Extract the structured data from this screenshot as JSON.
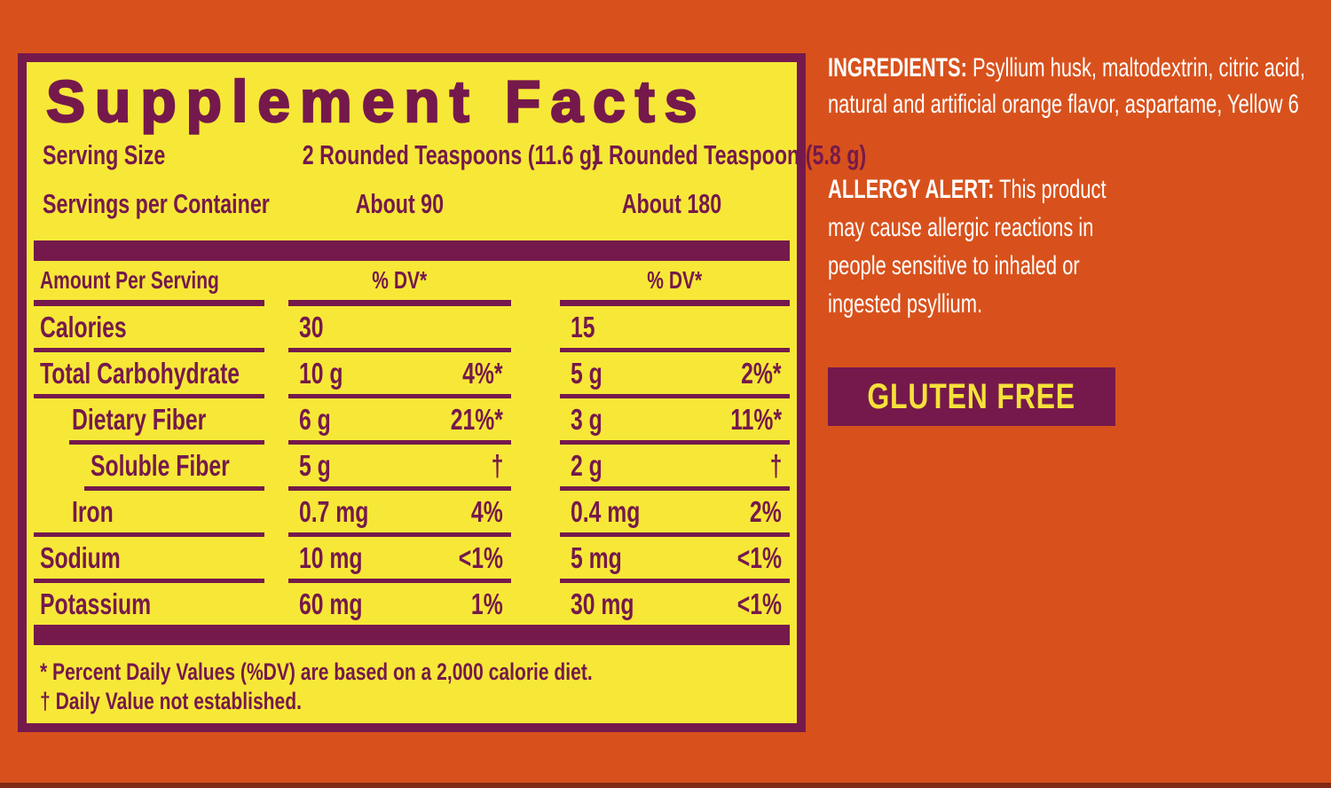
{
  "colors": {
    "orange_bg": "#d8511c",
    "label_purple": "#75194c",
    "panel_yellow": "#f7e837",
    "text_white": "#ffffff",
    "badge_yellow": "#f6e139",
    "bottom_edge": "#812a15"
  },
  "panel": {
    "title": "Supplement Facts",
    "serving_size": {
      "label": "Serving Size",
      "col1": "2 Rounded Teaspoons (11.6 g)",
      "col2": "1 Rounded Teaspoon (5.8 g)"
    },
    "servings_per_container": {
      "label": "Servings per Container",
      "col1": "About 90",
      "col2": "About 180"
    },
    "table": {
      "header": {
        "label": "Amount Per Serving",
        "dv1": "% DV*",
        "dv2": "% DV*"
      },
      "rows": [
        {
          "label": "Calories",
          "amt1": "30",
          "dv1": "",
          "amt2": "15",
          "dv2": ""
        },
        {
          "label": "Total Carbohydrate",
          "amt1": "10 g",
          "dv1": "4%*",
          "amt2": "5 g",
          "dv2": "2%*"
        },
        {
          "label": "Dietary Fiber",
          "amt1": "6 g",
          "dv1": "21%*",
          "amt2": "3 g",
          "dv2": "11%*"
        },
        {
          "label": "Soluble Fiber",
          "amt1": "5 g",
          "dv1": "†",
          "amt2": "2 g",
          "dv2": "†"
        },
        {
          "label": "Iron",
          "amt1": "0.7 mg",
          "dv1": "4%",
          "amt2": "0.4 mg",
          "dv2": "2%"
        },
        {
          "label": "Sodium",
          "amt1": "10 mg",
          "dv1": "<1%",
          "amt2": "5 mg",
          "dv2": "<1%"
        },
        {
          "label": "Potassium",
          "amt1": "60 mg",
          "dv1": "1%",
          "amt2": "30 mg",
          "dv2": "<1%"
        }
      ]
    },
    "footnotes": [
      "* Percent Daily Values (%DV) are based on a 2,000 calorie diet.",
      "† Daily Value not established."
    ]
  },
  "right": {
    "ingredients": {
      "label": "INGREDIENTS:",
      "lines": [
        "Psyllium husk, maltodextrin, citric acid,",
        "natural and artificial orange flavor, aspartame, Yellow 6"
      ]
    },
    "allergy": {
      "label": "ALLERGY ALERT:",
      "lines": [
        "This product",
        "may cause allergic reactions in",
        "people sensitive to inhaled or",
        "ingested psyllium."
      ]
    },
    "gluten_free": "GLUTEN FREE"
  }
}
